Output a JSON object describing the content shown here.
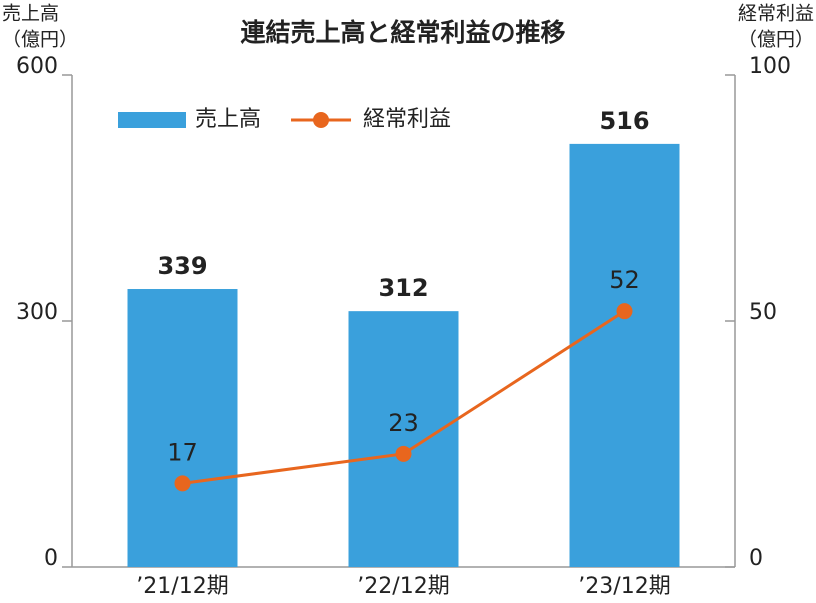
{
  "chart_data": {
    "type": "bar_line",
    "title": "連結売上高と経常利益の推移",
    "y_label": [
      "売上高",
      "（億円）"
    ],
    "y2_label": [
      "経常利益",
      "（億円）"
    ],
    "categories": [
      "’21/12期",
      "’22/12期",
      "’23/12期"
    ],
    "series": [
      {
        "name": "売上高",
        "type": "bar",
        "color": "#3aa0dc",
        "values": [
          339,
          312,
          516
        ]
      },
      {
        "name": "経常利益",
        "type": "line",
        "axis": "y2",
        "color": "#e8661e",
        "values": [
          17,
          23,
          52
        ]
      }
    ],
    "ylim": [
      0,
      600
    ],
    "yticks": [
      0,
      300,
      600
    ],
    "y2lim": [
      0,
      100
    ],
    "y2ticks": [
      0,
      50,
      100
    ],
    "legend": "upper left",
    "data_labels": true
  }
}
